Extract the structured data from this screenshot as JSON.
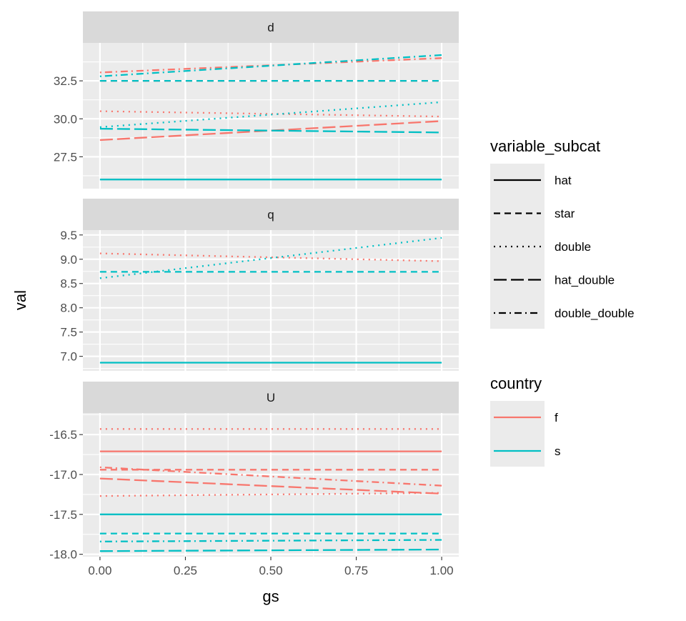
{
  "chart_data": {
    "type": "line",
    "xlabel": "gs",
    "ylabel": "val",
    "x_ticks": [
      0,
      0.25,
      0.5,
      0.75,
      1
    ],
    "x_tick_labels": [
      "0.00",
      "0.25",
      "0.50",
      "0.75",
      "1.00"
    ],
    "xlim": [
      -0.05,
      1.05
    ],
    "grid": true,
    "legend_position": "right",
    "legends": [
      {
        "title": "variable_subcat",
        "aesthetic": "linetype",
        "items": [
          {
            "label": "hat",
            "linetype": "solid"
          },
          {
            "label": "star",
            "linetype": "dashed"
          },
          {
            "label": "double",
            "linetype": "dotted"
          },
          {
            "label": "hat_double",
            "linetype": "longdash"
          },
          {
            "label": "double_double",
            "linetype": "dotdash"
          }
        ]
      },
      {
        "title": "country",
        "aesthetic": "color",
        "items": [
          {
            "label": "f",
            "color": "#F8766D"
          },
          {
            "label": "s",
            "color": "#00BFC4"
          }
        ]
      }
    ],
    "colors": {
      "f": "#F8766D",
      "s": "#00BFC4"
    },
    "facets": [
      {
        "label": "d",
        "ylim": [
          25.4,
          35.0
        ],
        "y_ticks": [
          27.5,
          30.0,
          32.5
        ],
        "y_tick_labels": [
          "27.5",
          "30.0",
          "32.5"
        ],
        "series": [
          {
            "country": "s",
            "linetype": "solid",
            "x": [
              0,
              1
            ],
            "y": [
              26.0,
              26.0
            ]
          },
          {
            "country": "f",
            "linetype": "dashed",
            "x": [
              0,
              1
            ],
            "y": [
              32.5,
              32.5
            ]
          },
          {
            "country": "s",
            "linetype": "dashed",
            "x": [
              0,
              1
            ],
            "y": [
              32.5,
              32.5
            ]
          },
          {
            "country": "f",
            "linetype": "dotted",
            "x": [
              0,
              1
            ],
            "y": [
              30.5,
              30.15
            ]
          },
          {
            "country": "s",
            "linetype": "dotted",
            "x": [
              0,
              1
            ],
            "y": [
              29.45,
              31.1
            ]
          },
          {
            "country": "f",
            "linetype": "longdash",
            "x": [
              0,
              1
            ],
            "y": [
              28.6,
              29.85
            ]
          },
          {
            "country": "s",
            "linetype": "longdash",
            "x": [
              0,
              1
            ],
            "y": [
              29.35,
              29.1
            ]
          },
          {
            "country": "f",
            "linetype": "dotdash",
            "x": [
              0,
              1
            ],
            "y": [
              33.05,
              34.0
            ]
          },
          {
            "country": "s",
            "linetype": "dotdash",
            "x": [
              0,
              1
            ],
            "y": [
              32.8,
              34.2
            ]
          }
        ]
      },
      {
        "label": "q",
        "ylim": [
          6.7,
          9.6
        ],
        "y_ticks": [
          7.0,
          7.5,
          8.0,
          8.5,
          9.0,
          9.5
        ],
        "y_tick_labels": [
          "7.0",
          "7.5",
          "8.0",
          "8.5",
          "9.0",
          "9.5"
        ],
        "series": [
          {
            "country": "s",
            "linetype": "solid",
            "x": [
              0,
              1
            ],
            "y": [
              6.87,
              6.87
            ]
          },
          {
            "country": "s",
            "linetype": "dashed",
            "x": [
              0,
              1
            ],
            "y": [
              8.74,
              8.74
            ]
          },
          {
            "country": "f",
            "linetype": "dotted",
            "x": [
              0,
              1
            ],
            "y": [
              9.12,
              8.96
            ]
          },
          {
            "country": "s",
            "linetype": "dotted",
            "x": [
              0,
              1
            ],
            "y": [
              8.61,
              9.44
            ]
          }
        ]
      },
      {
        "label": "U",
        "ylim": [
          -18.03,
          -16.23
        ],
        "y_ticks": [
          -18.0,
          -17.5,
          -17.0,
          -16.5
        ],
        "y_tick_labels": [
          "-18.0",
          "-17.5",
          "-17.0",
          "-16.5"
        ],
        "series": [
          {
            "country": "f",
            "linetype": "solid",
            "x": [
              0,
              1
            ],
            "y": [
              -16.71,
              -16.71
            ]
          },
          {
            "country": "s",
            "linetype": "solid",
            "x": [
              0,
              1
            ],
            "y": [
              -17.5,
              -17.5
            ]
          },
          {
            "country": "f",
            "linetype": "dashed",
            "x": [
              0,
              1
            ],
            "y": [
              -16.94,
              -16.94
            ]
          },
          {
            "country": "s",
            "linetype": "dashed",
            "x": [
              0,
              1
            ],
            "y": [
              -17.74,
              -17.74
            ]
          },
          {
            "country": "f",
            "linetype": "dotted",
            "x": [
              0,
              1
            ],
            "y": [
              -16.43,
              -16.43
            ]
          },
          {
            "country": "f",
            "linetype": "dotted",
            "x": [
              0,
              1
            ],
            "y": [
              -17.27,
              -17.23
            ]
          },
          {
            "country": "f",
            "linetype": "longdash",
            "x": [
              0,
              1
            ],
            "y": [
              -17.05,
              -17.24
            ]
          },
          {
            "country": "s",
            "linetype": "longdash",
            "x": [
              0,
              1
            ],
            "y": [
              -17.96,
              -17.94
            ]
          },
          {
            "country": "f",
            "linetype": "dotdash",
            "x": [
              0,
              1
            ],
            "y": [
              -16.91,
              -17.14
            ]
          },
          {
            "country": "s",
            "linetype": "dotdash",
            "x": [
              0,
              1
            ],
            "y": [
              -17.84,
              -17.82
            ]
          }
        ]
      }
    ]
  }
}
